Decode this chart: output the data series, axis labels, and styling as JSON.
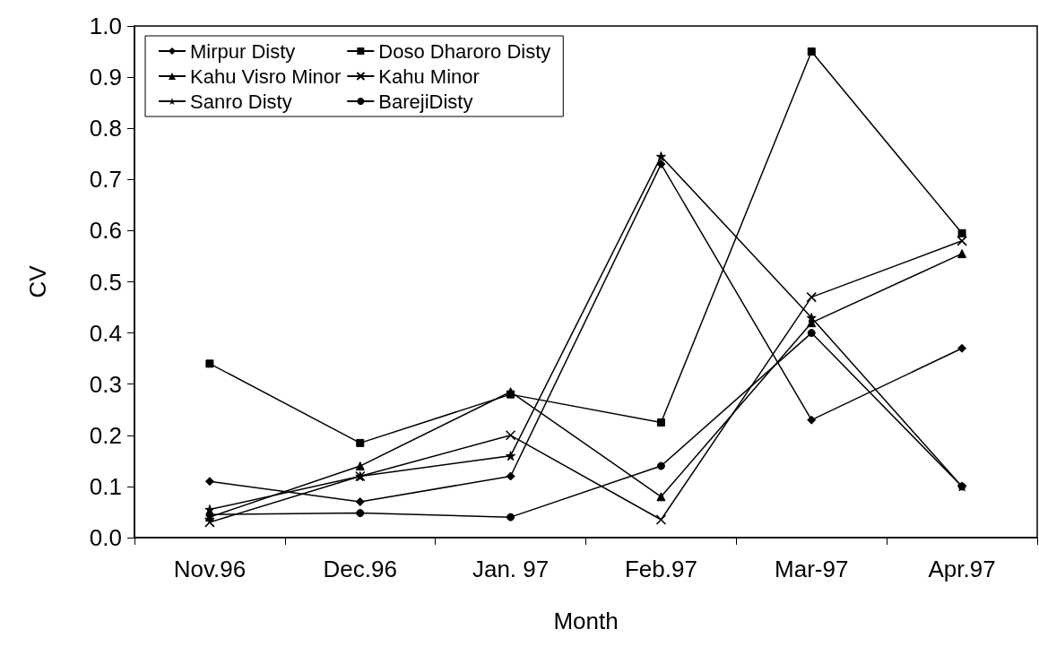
{
  "chart_data": {
    "type": "line",
    "xlabel": "Month",
    "ylabel": "CV",
    "categories": [
      "Nov.96",
      "Dec.96",
      "Jan. 97",
      "Feb.97",
      "Mar-97",
      "Apr.97"
    ],
    "series": [
      {
        "name": "Mirpur Disty",
        "color": "#000000",
        "marker": "diamond",
        "values": [
          0.11,
          0.07,
          0.12,
          0.73,
          0.23,
          0.37
        ]
      },
      {
        "name": "Doso Dharoro Disty",
        "color": "#000000",
        "marker": "square",
        "values": [
          0.34,
          0.185,
          0.28,
          0.225,
          0.95,
          0.595
        ]
      },
      {
        "name": "Kahu Visro Minor",
        "color": "#000000",
        "marker": "triangle",
        "values": [
          0.04,
          0.14,
          0.285,
          0.08,
          0.42,
          0.555
        ]
      },
      {
        "name": "Kahu Minor",
        "color": "#000000",
        "marker": "cross",
        "values": [
          0.03,
          0.12,
          0.2,
          0.035,
          0.47,
          0.58
        ]
      },
      {
        "name": "Sanro Disty",
        "color": "#000000",
        "marker": "star",
        "values": [
          0.055,
          0.12,
          0.16,
          0.745,
          0.43,
          0.1
        ]
      },
      {
        "name": "BarejiDisty",
        "color": "#000000",
        "marker": "circle",
        "values": [
          0.045,
          0.048,
          0.04,
          0.14,
          0.4,
          0.1
        ]
      }
    ],
    "ylim": [
      0,
      1
    ],
    "yticks": [
      {
        "value": 0,
        "label": "0.0"
      },
      0.1,
      0.2,
      0.3,
      0.4,
      0.5,
      0.6,
      0.7,
      0.8,
      0.9,
      {
        "value": 1,
        "label": "1.0"
      }
    ],
    "grid": false,
    "legend": "top left",
    "line_style": "solid"
  }
}
